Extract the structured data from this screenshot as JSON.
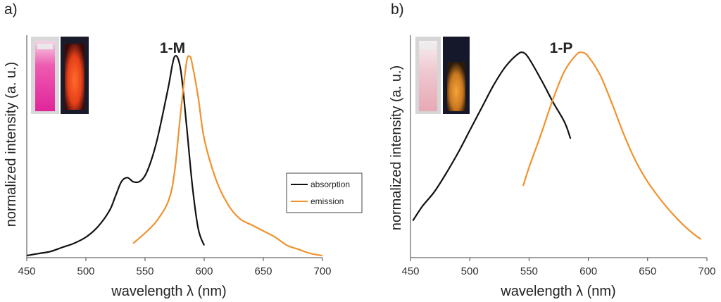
{
  "figure": {
    "panels": [
      "a)",
      "b)"
    ]
  },
  "colors": {
    "absorption": "#111111",
    "emission": "#f0922e",
    "axis": "#444444"
  },
  "chart_data": [
    {
      "type": "line",
      "panel": "a)",
      "title": "1-M",
      "xlabel": "wavelength λ (nm)",
      "ylabel": "normalized  intensity (a. u.)",
      "xlim": [
        450,
        700
      ],
      "xticks": [
        450,
        500,
        550,
        600,
        650,
        700
      ],
      "ylim": [
        0,
        1.05
      ],
      "yticks_shown": false,
      "legend": {
        "placement": "right",
        "entries": [
          "absorption",
          "emission"
        ]
      },
      "series": [
        {
          "name": "absorption",
          "x": [
            450,
            460,
            470,
            480,
            490,
            500,
            510,
            520,
            525,
            530,
            535,
            540,
            545,
            550,
            555,
            560,
            565,
            570,
            575,
            580,
            585,
            590,
            595,
            600
          ],
          "y": [
            0.01,
            0.02,
            0.03,
            0.05,
            0.07,
            0.1,
            0.15,
            0.23,
            0.3,
            0.37,
            0.39,
            0.37,
            0.37,
            0.4,
            0.47,
            0.57,
            0.7,
            0.84,
            0.98,
            0.92,
            0.65,
            0.35,
            0.14,
            0.06
          ]
        },
        {
          "name": "emission",
          "x": [
            540,
            550,
            560,
            570,
            575,
            580,
            585,
            588,
            590,
            595,
            600,
            610,
            620,
            630,
            640,
            650,
            660,
            670,
            680,
            690,
            700
          ],
          "y": [
            0.07,
            0.12,
            0.18,
            0.28,
            0.42,
            0.7,
            0.95,
            0.98,
            0.94,
            0.78,
            0.58,
            0.38,
            0.26,
            0.19,
            0.16,
            0.13,
            0.1,
            0.06,
            0.04,
            0.02,
            0.01
          ]
        }
      ]
    },
    {
      "type": "line",
      "panel": "b)",
      "title": "1-P",
      "xlabel": "wavelength λ (nm)",
      "ylabel": "normalized  intensity (a. u.)",
      "xlim": [
        450,
        700
      ],
      "xticks": [
        450,
        500,
        550,
        600,
        650,
        700
      ],
      "ylim": [
        0,
        1.05
      ],
      "yticks_shown": false,
      "legend": null,
      "series": [
        {
          "name": "absorption",
          "x": [
            452,
            460,
            470,
            480,
            490,
            500,
            510,
            520,
            530,
            540,
            545,
            550,
            560,
            570,
            580,
            585
          ],
          "y": [
            0.18,
            0.25,
            0.32,
            0.41,
            0.51,
            0.62,
            0.73,
            0.84,
            0.93,
            0.99,
            1.0,
            0.97,
            0.87,
            0.76,
            0.66,
            0.58
          ]
        },
        {
          "name": "emission",
          "x": [
            545,
            550,
            560,
            570,
            580,
            590,
            595,
            600,
            610,
            620,
            630,
            640,
            650,
            660,
            670,
            680,
            690,
            695
          ],
          "y": [
            0.35,
            0.44,
            0.6,
            0.77,
            0.91,
            0.99,
            1.0,
            0.98,
            0.89,
            0.75,
            0.6,
            0.47,
            0.37,
            0.29,
            0.22,
            0.16,
            0.11,
            0.09
          ]
        }
      ]
    }
  ]
}
